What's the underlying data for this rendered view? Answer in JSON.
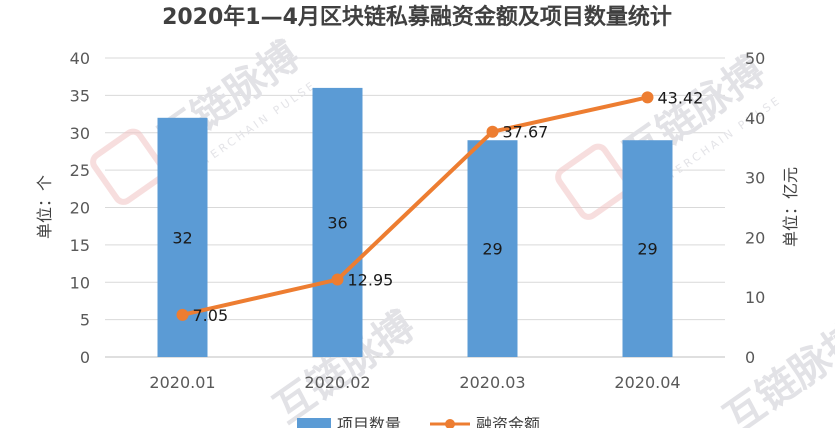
{
  "chart_data": {
    "type": "bar",
    "title": "2020年1—4月区块链私募融资金额及项目数量统计",
    "categories": [
      "2020.01",
      "2020.02",
      "2020.03",
      "2020.04"
    ],
    "series": [
      {
        "name": "项目数量",
        "type": "bar",
        "axis": "left",
        "color": "#5b9bd5",
        "values": [
          32,
          36,
          29,
          29
        ],
        "labels": [
          "32",
          "36",
          "29",
          "29"
        ]
      },
      {
        "name": "融资金额",
        "type": "line",
        "axis": "right",
        "color": "#ed7d31",
        "values": [
          7.05,
          12.95,
          37.67,
          43.42
        ],
        "labels": [
          "7.05",
          "12.95",
          "37.67",
          "43.42"
        ]
      }
    ],
    "ylabel_left": "单位：个",
    "ylabel_right": "单位：亿元",
    "ylim_left": [
      0,
      40
    ],
    "ylim_right": [
      0,
      50
    ],
    "yticks_left": [
      "0",
      "5",
      "10",
      "15",
      "20",
      "25",
      "30",
      "35",
      "40"
    ],
    "yticks_right": [
      "0",
      "10",
      "20",
      "30",
      "40",
      "50"
    ],
    "grid": true,
    "legend": "bottom"
  },
  "watermark": {
    "text": "互链脉搏",
    "subtext": "INTERCHAIN PULSE"
  }
}
